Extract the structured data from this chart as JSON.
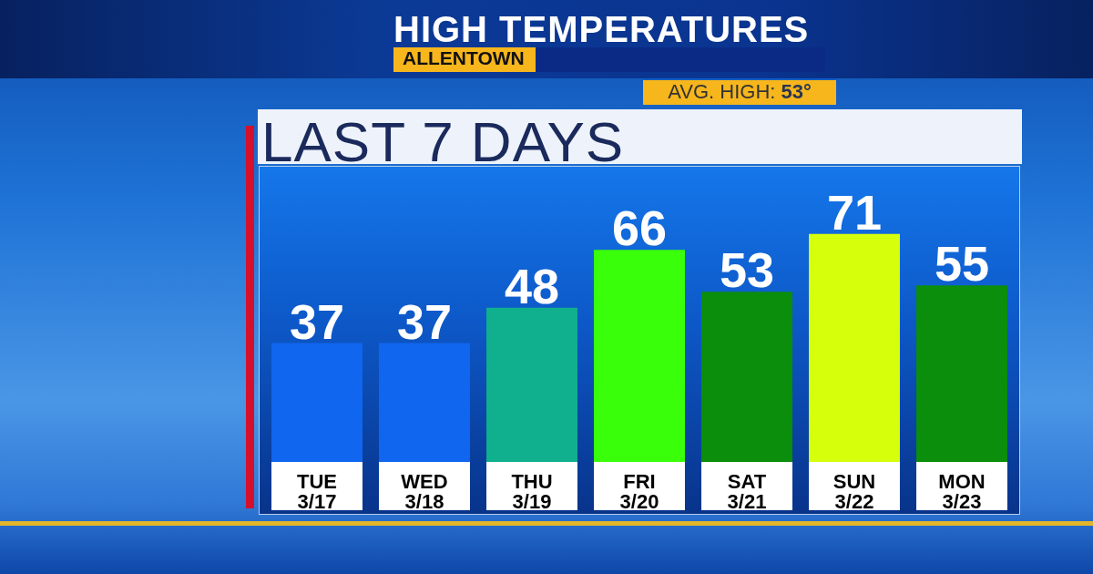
{
  "chart_data": {
    "type": "bar",
    "title": "HIGH TEMPERATURES",
    "subtitle": "ALLENTOWN",
    "annotations": [
      "AVG. HIGH: 53°",
      "LAST 7 DAYS"
    ],
    "categories": [
      "TUE\n3/17",
      "WED\n3/18",
      "THU\n3/19",
      "FRI\n3/20",
      "SAT\n3/21",
      "SUN\n3/22",
      "MON\n3/23"
    ],
    "values": [
      37,
      37,
      48,
      66,
      53,
      71,
      55
    ],
    "colors": [
      "#1066ee",
      "#1066ee",
      "#10b08e",
      "#3aff0a",
      "#0b8e0b",
      "#d6ff0c",
      "#0b8e0b"
    ],
    "data_labels": true,
    "tick_labels": "x"
  }
}
